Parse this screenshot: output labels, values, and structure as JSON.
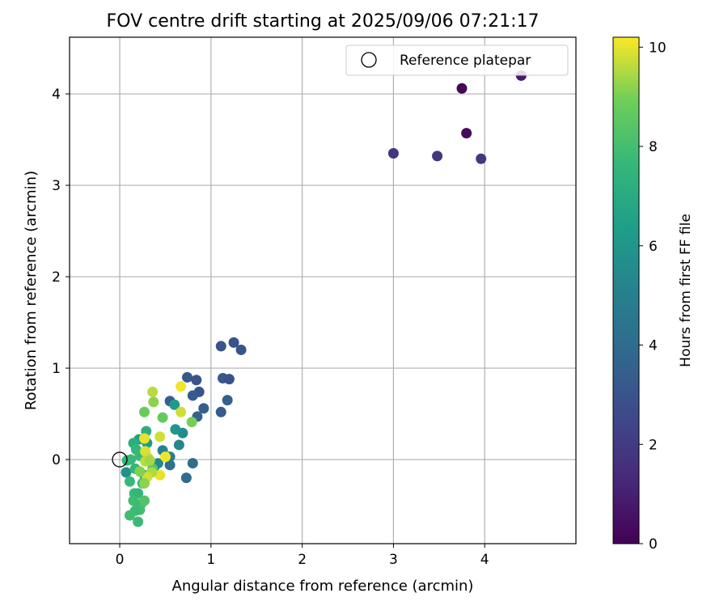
{
  "chart_data": {
    "type": "scatter",
    "title": "FOV centre drift starting at 2025/09/06 07:21:17",
    "xlabel": "Angular distance from reference (arcmin)",
    "ylabel": "Rotation from reference (arcmin)",
    "xlim": [
      -0.55,
      5.0
    ],
    "ylim": [
      -0.92,
      4.62
    ],
    "xticks": [
      0,
      1,
      2,
      3,
      4
    ],
    "yticks": [
      0,
      1,
      2,
      3,
      4
    ],
    "grid": true,
    "colormap": "viridis",
    "legend": {
      "position": "top-right",
      "entries": [
        "Reference platepar"
      ]
    },
    "reference": {
      "label": "Reference platepar",
      "x": 0,
      "y": 0
    },
    "colorbar": {
      "label": "Hours from first FF file",
      "min": 0,
      "max": 10.2,
      "ticks": [
        0,
        2,
        4,
        6,
        8,
        10
      ]
    },
    "points": [
      {
        "x": 3.75,
        "y": 4.06,
        "c": 0.2
      },
      {
        "x": 3.8,
        "y": 3.57,
        "c": 0.3
      },
      {
        "x": 4.4,
        "y": 4.2,
        "c": 0.8
      },
      {
        "x": 3.0,
        "y": 3.35,
        "c": 1.8
      },
      {
        "x": 3.48,
        "y": 3.32,
        "c": 1.8
      },
      {
        "x": 3.96,
        "y": 3.29,
        "c": 1.9
      },
      {
        "x": 1.25,
        "y": 1.28,
        "c": 2.9
      },
      {
        "x": 1.33,
        "y": 1.2,
        "c": 3.0
      },
      {
        "x": 1.11,
        "y": 1.24,
        "c": 3.0
      },
      {
        "x": 0.74,
        "y": 0.9,
        "c": 3.2
      },
      {
        "x": 0.84,
        "y": 0.87,
        "c": 3.0
      },
      {
        "x": 1.13,
        "y": 0.89,
        "c": 3.2
      },
      {
        "x": 1.2,
        "y": 0.88,
        "c": 2.9
      },
      {
        "x": 0.87,
        "y": 0.74,
        "c": 3.0
      },
      {
        "x": 0.8,
        "y": 0.7,
        "c": 3.3
      },
      {
        "x": 0.55,
        "y": 0.64,
        "c": 3.5
      },
      {
        "x": 1.18,
        "y": 0.65,
        "c": 3.5
      },
      {
        "x": 0.92,
        "y": 0.56,
        "c": 3.4
      },
      {
        "x": 1.11,
        "y": 0.52,
        "c": 3.3
      },
      {
        "x": 0.85,
        "y": 0.47,
        "c": 3.6
      },
      {
        "x": 0.8,
        "y": -0.04,
        "c": 4.0
      },
      {
        "x": 0.73,
        "y": -0.2,
        "c": 4.0
      },
      {
        "x": 0.55,
        "y": -0.06,
        "c": 4.2
      },
      {
        "x": 0.55,
        "y": 0.03,
        "c": 4.8
      },
      {
        "x": 0.47,
        "y": 0.1,
        "c": 5.1
      },
      {
        "x": 0.65,
        "y": 0.16,
        "c": 5.3
      },
      {
        "x": 0.69,
        "y": 0.29,
        "c": 5.5
      },
      {
        "x": 0.61,
        "y": 0.33,
        "c": 6.0
      },
      {
        "x": 0.6,
        "y": 0.6,
        "c": 6.2
      },
      {
        "x": 0.38,
        "y": -0.08,
        "c": 5.2
      },
      {
        "x": 0.42,
        "y": -0.04,
        "c": 5.4
      },
      {
        "x": 0.3,
        "y": 0.18,
        "c": 6.2
      },
      {
        "x": 0.29,
        "y": 0.31,
        "c": 7.2
      },
      {
        "x": 0.21,
        "y": 0.22,
        "c": 6.5
      },
      {
        "x": 0.07,
        "y": -0.14,
        "c": 5.8
      },
      {
        "x": 0.08,
        "y": -0.01,
        "c": 7.5
      },
      {
        "x": 0.15,
        "y": 0.18,
        "c": 7.2
      },
      {
        "x": 0.18,
        "y": 0.11,
        "c": 7.6
      },
      {
        "x": 0.22,
        "y": 0.04,
        "c": 7.7
      },
      {
        "x": 0.12,
        "y": 0.0,
        "c": 7.7
      },
      {
        "x": 0.17,
        "y": -0.1,
        "c": 7.6
      },
      {
        "x": 0.27,
        "y": -0.17,
        "c": 7.4
      },
      {
        "x": 0.25,
        "y": -0.26,
        "c": 7.5
      },
      {
        "x": 0.11,
        "y": -0.24,
        "c": 7.7
      },
      {
        "x": 0.16,
        "y": -0.37,
        "c": 7.8
      },
      {
        "x": 0.2,
        "y": -0.37,
        "c": 7.6
      },
      {
        "x": 0.15,
        "y": -0.45,
        "c": 7.9
      },
      {
        "x": 0.23,
        "y": -0.49,
        "c": 7.8
      },
      {
        "x": 0.22,
        "y": -0.55,
        "c": 8.0
      },
      {
        "x": 0.17,
        "y": -0.56,
        "c": 7.8
      },
      {
        "x": 0.11,
        "y": -0.61,
        "c": 7.9
      },
      {
        "x": 0.2,
        "y": -0.68,
        "c": 7.8
      },
      {
        "x": 0.27,
        "y": -0.45,
        "c": 8.3
      },
      {
        "x": 0.36,
        "y": -0.1,
        "c": 8.5
      },
      {
        "x": 0.47,
        "y": 0.46,
        "c": 8.7
      },
      {
        "x": 0.27,
        "y": 0.52,
        "c": 8.8
      },
      {
        "x": 0.79,
        "y": 0.41,
        "c": 9.0
      },
      {
        "x": 0.37,
        "y": 0.63,
        "c": 9.2
      },
      {
        "x": 0.36,
        "y": 0.74,
        "c": 9.6
      },
      {
        "x": 0.67,
        "y": 0.52,
        "c": 9.8
      },
      {
        "x": 0.67,
        "y": 0.8,
        "c": 10.1
      },
      {
        "x": 0.44,
        "y": 0.25,
        "c": 9.8
      },
      {
        "x": 0.27,
        "y": 0.23,
        "c": 10.0
      },
      {
        "x": 0.28,
        "y": 0.09,
        "c": 9.9
      },
      {
        "x": 0.31,
        "y": 0.02,
        "c": 9.8
      },
      {
        "x": 0.28,
        "y": -0.02,
        "c": 9.6
      },
      {
        "x": 0.33,
        "y": -0.01,
        "c": 9.4
      },
      {
        "x": 0.5,
        "y": 0.03,
        "c": 10.1
      },
      {
        "x": 0.44,
        "y": -0.17,
        "c": 10.0
      },
      {
        "x": 0.35,
        "y": -0.14,
        "c": 9.5
      },
      {
        "x": 0.3,
        "y": -0.19,
        "c": 9.8
      },
      {
        "x": 0.27,
        "y": -0.26,
        "c": 9.2
      },
      {
        "x": 0.22,
        "y": -0.13,
        "c": 9.1
      }
    ]
  }
}
